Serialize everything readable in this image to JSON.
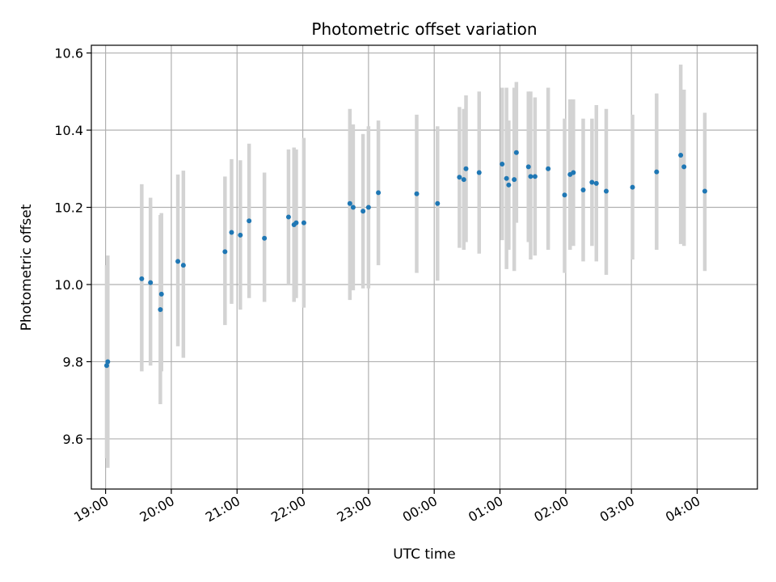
{
  "chart_data": {
    "type": "scatter",
    "title": "Photometric offset variation",
    "xlabel": "UTC time",
    "ylabel": "Photometric offset",
    "x_axis_kind": "time (hours since 19:00 UTC)",
    "xlim": [
      "18:47",
      "04:55"
    ],
    "ylim": [
      9.47,
      10.62
    ],
    "x_ticks": [
      "19:00",
      "20:00",
      "21:00",
      "22:00",
      "23:00",
      "00:00",
      "01:00",
      "02:00",
      "03:00",
      "04:00"
    ],
    "y_ticks": [
      "9.6",
      "9.8",
      "10.0",
      "10.2",
      "10.4",
      "10.6"
    ],
    "grid": true,
    "legend": "none",
    "colors": {
      "point": "#1f77b4",
      "errorbar": "#d3d3d3",
      "grid": "#b0b0b0"
    },
    "points": [
      {
        "t": "19:01",
        "y": 9.79,
        "lo": 9.55,
        "hi": 10.05
      },
      {
        "t": "19:02",
        "y": 9.8,
        "lo": 9.525,
        "hi": 10.075
      },
      {
        "t": "19:33",
        "y": 10.015,
        "lo": 9.775,
        "hi": 10.26
      },
      {
        "t": "19:41",
        "y": 10.005,
        "lo": 9.79,
        "hi": 10.225
      },
      {
        "t": "19:50",
        "y": 9.935,
        "lo": 9.69,
        "hi": 10.18
      },
      {
        "t": "19:51",
        "y": 9.975,
        "lo": 9.775,
        "hi": 10.185
      },
      {
        "t": "20:06",
        "y": 10.06,
        "lo": 9.84,
        "hi": 10.285
      },
      {
        "t": "20:11",
        "y": 10.05,
        "lo": 9.81,
        "hi": 10.295
      },
      {
        "t": "20:49",
        "y": 10.085,
        "lo": 9.895,
        "hi": 10.28
      },
      {
        "t": "20:55",
        "y": 10.135,
        "lo": 9.95,
        "hi": 10.325
      },
      {
        "t": "21:03",
        "y": 10.128,
        "lo": 9.935,
        "hi": 10.322
      },
      {
        "t": "21:11",
        "y": 10.165,
        "lo": 9.965,
        "hi": 10.365
      },
      {
        "t": "21:25",
        "y": 10.12,
        "lo": 9.955,
        "hi": 10.29
      },
      {
        "t": "21:47",
        "y": 10.175,
        "lo": 10.0,
        "hi": 10.35
      },
      {
        "t": "21:52",
        "y": 10.155,
        "lo": 9.955,
        "hi": 10.355
      },
      {
        "t": "21:54",
        "y": 10.16,
        "lo": 9.965,
        "hi": 10.35
      },
      {
        "t": "22:01",
        "y": 10.16,
        "lo": 9.94,
        "hi": 10.38
      },
      {
        "t": "22:43",
        "y": 10.21,
        "lo": 9.96,
        "hi": 10.455
      },
      {
        "t": "22:46",
        "y": 10.2,
        "lo": 9.985,
        "hi": 10.415
      },
      {
        "t": "22:55",
        "y": 10.19,
        "lo": 9.99,
        "hi": 10.39
      },
      {
        "t": "23:00",
        "y": 10.2,
        "lo": 9.99,
        "hi": 10.41
      },
      {
        "t": "23:09",
        "y": 10.238,
        "lo": 10.05,
        "hi": 10.425
      },
      {
        "t": "23:44",
        "y": 10.235,
        "lo": 10.03,
        "hi": 10.44
      },
      {
        "t": "00:03",
        "y": 10.21,
        "lo": 10.01,
        "hi": 10.41
      },
      {
        "t": "00:23",
        "y": 10.278,
        "lo": 10.095,
        "hi": 10.46
      },
      {
        "t": "00:27",
        "y": 10.272,
        "lo": 10.09,
        "hi": 10.455
      },
      {
        "t": "00:29",
        "y": 10.3,
        "lo": 10.11,
        "hi": 10.49
      },
      {
        "t": "00:41",
        "y": 10.29,
        "lo": 10.08,
        "hi": 10.5
      },
      {
        "t": "01:02",
        "y": 10.312,
        "lo": 10.115,
        "hi": 10.51
      },
      {
        "t": "01:06",
        "y": 10.275,
        "lo": 10.04,
        "hi": 10.51
      },
      {
        "t": "01:08",
        "y": 10.258,
        "lo": 10.09,
        "hi": 10.425
      },
      {
        "t": "01:13",
        "y": 10.272,
        "lo": 10.035,
        "hi": 10.51
      },
      {
        "t": "01:15",
        "y": 10.342,
        "lo": 10.16,
        "hi": 10.525
      },
      {
        "t": "01:26",
        "y": 10.305,
        "lo": 10.11,
        "hi": 10.5
      },
      {
        "t": "01:28",
        "y": 10.28,
        "lo": 10.065,
        "hi": 10.5
      },
      {
        "t": "01:32",
        "y": 10.28,
        "lo": 10.075,
        "hi": 10.485
      },
      {
        "t": "01:44",
        "y": 10.3,
        "lo": 10.09,
        "hi": 10.51
      },
      {
        "t": "01:59",
        "y": 10.232,
        "lo": 10.03,
        "hi": 10.43
      },
      {
        "t": "02:04",
        "y": 10.285,
        "lo": 10.09,
        "hi": 10.48
      },
      {
        "t": "02:07",
        "y": 10.29,
        "lo": 10.1,
        "hi": 10.48
      },
      {
        "t": "02:16",
        "y": 10.245,
        "lo": 10.06,
        "hi": 10.43
      },
      {
        "t": "02:24",
        "y": 10.265,
        "lo": 10.1,
        "hi": 10.43
      },
      {
        "t": "02:28",
        "y": 10.262,
        "lo": 10.06,
        "hi": 10.465
      },
      {
        "t": "02:37",
        "y": 10.242,
        "lo": 10.025,
        "hi": 10.455
      },
      {
        "t": "03:01",
        "y": 10.252,
        "lo": 10.065,
        "hi": 10.44
      },
      {
        "t": "03:23",
        "y": 10.292,
        "lo": 10.09,
        "hi": 10.495
      },
      {
        "t": "03:45",
        "y": 10.335,
        "lo": 10.105,
        "hi": 10.57
      },
      {
        "t": "03:48",
        "y": 10.305,
        "lo": 10.1,
        "hi": 10.505
      },
      {
        "t": "04:07",
        "y": 10.242,
        "lo": 10.035,
        "hi": 10.445
      }
    ]
  }
}
